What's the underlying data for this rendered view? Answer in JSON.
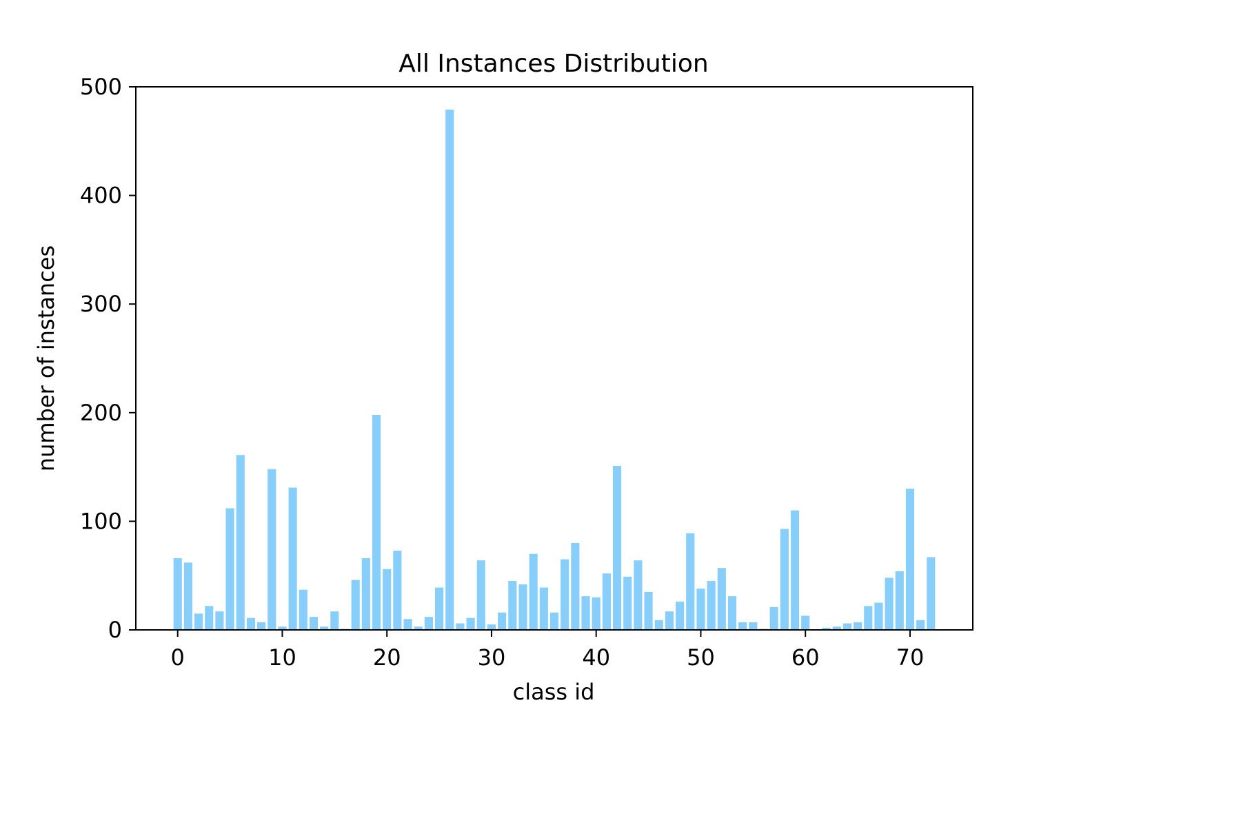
{
  "chart_data": {
    "type": "bar",
    "title": "All Instances Distribution",
    "xlabel": "class id",
    "ylabel": "number of instances",
    "x": [
      0,
      1,
      2,
      3,
      4,
      5,
      6,
      7,
      8,
      9,
      10,
      11,
      12,
      13,
      14,
      15,
      16,
      17,
      18,
      19,
      20,
      21,
      22,
      23,
      24,
      25,
      26,
      27,
      28,
      29,
      30,
      31,
      32,
      33,
      34,
      35,
      36,
      37,
      38,
      39,
      40,
      41,
      42,
      43,
      44,
      45,
      46,
      47,
      48,
      49,
      50,
      51,
      52,
      53,
      54,
      55,
      56,
      57,
      58,
      59,
      60,
      61,
      62,
      63,
      64,
      65,
      66,
      67,
      68,
      69,
      70,
      71,
      72
    ],
    "values": [
      66,
      62,
      15,
      22,
      17,
      112,
      161,
      11,
      7,
      148,
      3,
      131,
      37,
      12,
      3,
      17,
      1,
      46,
      66,
      198,
      56,
      73,
      10,
      3,
      12,
      39,
      479,
      6,
      11,
      64,
      5,
      16,
      45,
      42,
      70,
      39,
      16,
      65,
      80,
      31,
      30,
      52,
      151,
      49,
      64,
      35,
      9,
      17,
      26,
      89,
      38,
      45,
      57,
      31,
      7,
      7,
      1,
      21,
      93,
      110,
      13,
      0,
      2,
      3,
      6,
      7,
      22,
      25,
      48,
      54,
      130,
      9,
      67
    ],
    "xlim": [
      -4,
      76
    ],
    "ylim": [
      0,
      500
    ],
    "xticks": [
      0,
      10,
      20,
      30,
      40,
      50,
      60,
      70
    ],
    "yticks": [
      0,
      100,
      200,
      300,
      400,
      500
    ],
    "grid": false,
    "bar_color": "#87CEFA"
  }
}
